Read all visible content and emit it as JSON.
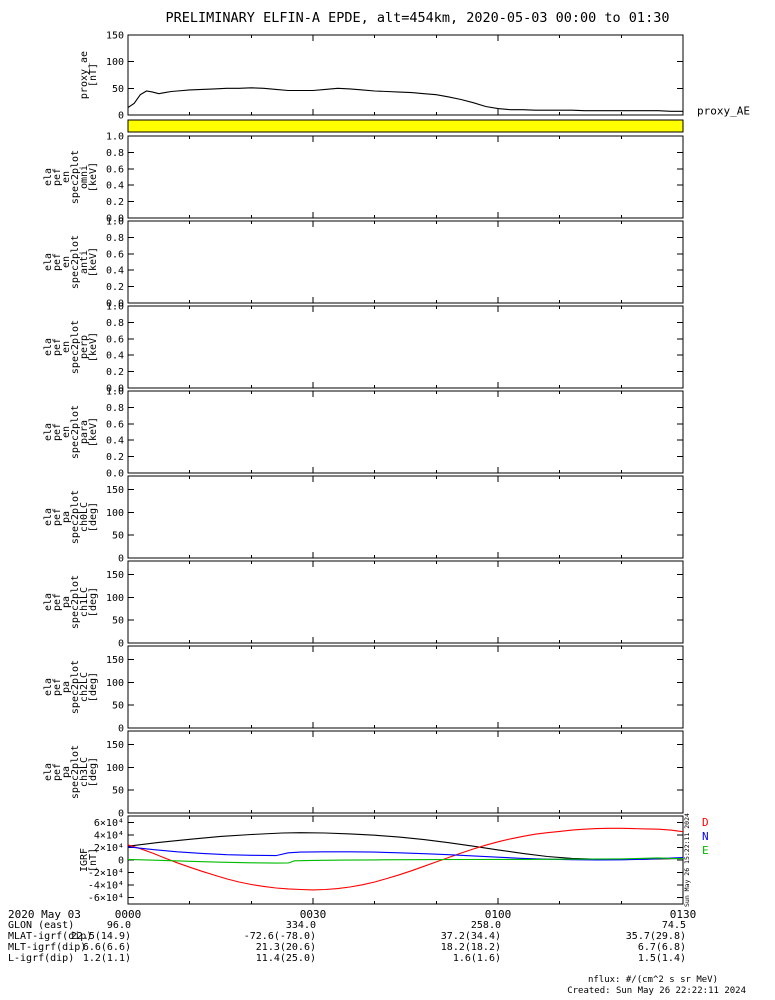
{
  "title": "PRELIMINARY ELFIN-A EPDE, alt=454km, 2020-05-03 00:00 to 01:30",
  "watermark_vertical": "Sun May 26 15:22:11 2024",
  "footer": {
    "nflux_units": "nflux:  #/(cm^2 s sr MeV)",
    "created": "Created: Sun May 26 22:22:11 2024"
  },
  "time_axis": {
    "date_label": "2020 May 03",
    "tick_minutes": [
      0,
      30,
      60,
      90
    ],
    "ticks": [
      "0000",
      "0030",
      "0100",
      "0130"
    ]
  },
  "ephemeris_rows": [
    {
      "label": "GLON (east)",
      "values": [
        "96.0",
        "334.0",
        "258.0",
        "74.5"
      ]
    },
    {
      "label": "MLAT-igrf(dip)",
      "values": [
        "22.5(14.9)",
        "-72.6(-78.0)",
        "37.2(34.4)",
        "35.7(29.8)"
      ]
    },
    {
      "label": "MLT-igrf(dip)",
      "values": [
        "6.6(6.6)",
        "21.3(20.6)",
        "18.2(18.2)",
        "6.7(6.8)"
      ]
    },
    {
      "label": "L-igrf(dip)",
      "values": [
        "1.2(1.1)",
        "11.4(25.0)",
        "1.6(1.6)",
        "1.5(1.4)"
      ]
    }
  ],
  "chart_data": [
    {
      "id": "proxy_ae",
      "type": "line",
      "ylabel_lines": [
        "proxy_ae",
        "[nT]"
      ],
      "ylim": [
        0,
        150
      ],
      "xlim": [
        0,
        90
      ],
      "yticks": [
        {
          "v": 150,
          "label": "150"
        },
        {
          "v": 100,
          "label": "100"
        },
        {
          "v": 50,
          "label": "50"
        },
        {
          "v": 0,
          "label": "0"
        }
      ],
      "right_label": {
        "text": "proxy_AE",
        "color": "#000000"
      },
      "series": [
        {
          "name": "proxy_AE",
          "color": "#000000",
          "points": [
            [
              0,
              14
            ],
            [
              1,
              22
            ],
            [
              2,
              38
            ],
            [
              3,
              45
            ],
            [
              4,
              43
            ],
            [
              5,
              40
            ],
            [
              6,
              42
            ],
            [
              7,
              44
            ],
            [
              8,
              45
            ],
            [
              10,
              47
            ],
            [
              12,
              48
            ],
            [
              14,
              49
            ],
            [
              16,
              50
            ],
            [
              18,
              50
            ],
            [
              20,
              51
            ],
            [
              22,
              50
            ],
            [
              24,
              48
            ],
            [
              26,
              46
            ],
            [
              28,
              46
            ],
            [
              30,
              46
            ],
            [
              32,
              48
            ],
            [
              34,
              50
            ],
            [
              36,
              49
            ],
            [
              38,
              47
            ],
            [
              40,
              45
            ],
            [
              42,
              44
            ],
            [
              44,
              43
            ],
            [
              46,
              42
            ],
            [
              48,
              40
            ],
            [
              50,
              38
            ],
            [
              52,
              34
            ],
            [
              54,
              29
            ],
            [
              56,
              23
            ],
            [
              58,
              16
            ],
            [
              60,
              12
            ],
            [
              62,
              10
            ],
            [
              64,
              10
            ],
            [
              66,
              9
            ],
            [
              68,
              9
            ],
            [
              70,
              9
            ],
            [
              72,
              9
            ],
            [
              74,
              8
            ],
            [
              76,
              8
            ],
            [
              78,
              8
            ],
            [
              80,
              8
            ],
            [
              82,
              8
            ],
            [
              84,
              8
            ],
            [
              86,
              8
            ],
            [
              88,
              7
            ],
            [
              90,
              7
            ]
          ]
        }
      ]
    },
    {
      "id": "fast_bar",
      "type": "band",
      "color": "#ffff00"
    },
    {
      "id": "en_omni",
      "type": "heatmap",
      "ylabel_lines": [
        "ela",
        "pef",
        "en",
        "spec2plot",
        "omni",
        "[keV]"
      ],
      "ylim": [
        0,
        1.0
      ],
      "xlim": [
        0,
        90
      ],
      "yticks": [
        {
          "v": 1.0,
          "label": "1.0"
        },
        {
          "v": 0.8,
          "label": "0.8"
        },
        {
          "v": 0.6,
          "label": "0.6"
        },
        {
          "v": 0.4,
          "label": "0.4"
        },
        {
          "v": 0.2,
          "label": "0.2"
        },
        {
          "v": 0.0,
          "label": "0.0"
        }
      ],
      "series": []
    },
    {
      "id": "en_anti",
      "type": "heatmap",
      "ylabel_lines": [
        "ela",
        "pef",
        "en",
        "spec2plot",
        "anti",
        "[keV]"
      ],
      "ylim": [
        0,
        1.0
      ],
      "xlim": [
        0,
        90
      ],
      "yticks": [
        {
          "v": 1.0,
          "label": "1.0"
        },
        {
          "v": 0.8,
          "label": "0.8"
        },
        {
          "v": 0.6,
          "label": "0.6"
        },
        {
          "v": 0.4,
          "label": "0.4"
        },
        {
          "v": 0.2,
          "label": "0.2"
        },
        {
          "v": 0.0,
          "label": "0.0"
        }
      ],
      "series": []
    },
    {
      "id": "en_perp",
      "type": "heatmap",
      "ylabel_lines": [
        "ela",
        "pef",
        "en",
        "spec2plot",
        "perp",
        "[keV]"
      ],
      "ylim": [
        0,
        1.0
      ],
      "xlim": [
        0,
        90
      ],
      "yticks": [
        {
          "v": 1.0,
          "label": "1.0"
        },
        {
          "v": 0.8,
          "label": "0.8"
        },
        {
          "v": 0.6,
          "label": "0.6"
        },
        {
          "v": 0.4,
          "label": "0.4"
        },
        {
          "v": 0.2,
          "label": "0.2"
        },
        {
          "v": 0.0,
          "label": "0.0"
        }
      ],
      "series": []
    },
    {
      "id": "en_para",
      "type": "heatmap",
      "ylabel_lines": [
        "ela",
        "pef",
        "en",
        "spec2plot",
        "para",
        "[keV]"
      ],
      "ylim": [
        0,
        1.0
      ],
      "xlim": [
        0,
        90
      ],
      "yticks": [
        {
          "v": 1.0,
          "label": "1.0"
        },
        {
          "v": 0.8,
          "label": "0.8"
        },
        {
          "v": 0.6,
          "label": "0.6"
        },
        {
          "v": 0.4,
          "label": "0.4"
        },
        {
          "v": 0.2,
          "label": "0.2"
        },
        {
          "v": 0.0,
          "label": "0.0"
        }
      ],
      "series": []
    },
    {
      "id": "pa_ch0lc",
      "type": "heatmap",
      "ylabel_lines": [
        "ela",
        "pef",
        "pa",
        "spec2plot",
        "ch0LC",
        "[deg]"
      ],
      "ylim": [
        0,
        180
      ],
      "xlim": [
        0,
        90
      ],
      "yticks": [
        {
          "v": 150,
          "label": "150"
        },
        {
          "v": 100,
          "label": "100"
        },
        {
          "v": 50,
          "label": "50"
        },
        {
          "v": 0,
          "label": "0"
        }
      ],
      "series": []
    },
    {
      "id": "pa_ch1lc",
      "type": "heatmap",
      "ylabel_lines": [
        "ela",
        "pef",
        "pa",
        "spec2plot",
        "ch1LC",
        "[deg]"
      ],
      "ylim": [
        0,
        180
      ],
      "xlim": [
        0,
        90
      ],
      "yticks": [
        {
          "v": 150,
          "label": "150"
        },
        {
          "v": 100,
          "label": "100"
        },
        {
          "v": 50,
          "label": "50"
        },
        {
          "v": 0,
          "label": "0"
        }
      ],
      "series": []
    },
    {
      "id": "pa_ch2lc",
      "type": "heatmap",
      "ylabel_lines": [
        "ela",
        "pef",
        "pa",
        "spec2plot",
        "ch2LC",
        "[deg]"
      ],
      "ylim": [
        0,
        180
      ],
      "xlim": [
        0,
        90
      ],
      "yticks": [
        {
          "v": 150,
          "label": "150"
        },
        {
          "v": 100,
          "label": "100"
        },
        {
          "v": 50,
          "label": "50"
        },
        {
          "v": 0,
          "label": "0"
        }
      ],
      "series": []
    },
    {
      "id": "pa_ch3lc",
      "type": "heatmap",
      "ylabel_lines": [
        "ela",
        "pef",
        "pa",
        "spec2plot",
        "ch3LC",
        "[deg]"
      ],
      "ylim": [
        0,
        180
      ],
      "xlim": [
        0,
        90
      ],
      "yticks": [
        {
          "v": 150,
          "label": "150"
        },
        {
          "v": 100,
          "label": "100"
        },
        {
          "v": 50,
          "label": "50"
        },
        {
          "v": 0,
          "label": "0"
        }
      ],
      "series": []
    },
    {
      "id": "igrf",
      "type": "line",
      "ylabel_lines": [
        "IGRF",
        "[nT]"
      ],
      "ylim": [
        -70000,
        70000
      ],
      "xlim": [
        0,
        90
      ],
      "yticks": [
        {
          "v": 60000,
          "label": "6×10⁴"
        },
        {
          "v": 40000,
          "label": "4×10⁴"
        },
        {
          "v": 20000,
          "label": "2×10⁴"
        },
        {
          "v": 0,
          "label": "0"
        },
        {
          "v": -20000,
          "label": "-2×10⁴"
        },
        {
          "v": -40000,
          "label": "-4×10⁴"
        },
        {
          "v": -60000,
          "label": "-6×10⁴"
        }
      ],
      "series": [
        {
          "name": "B_total",
          "color": "#000000",
          "points": [
            [
              0,
              22000
            ],
            [
              5,
              28000
            ],
            [
              10,
              33000
            ],
            [
              15,
              37500
            ],
            [
              20,
              40500
            ],
            [
              25,
              43000
            ],
            [
              28,
              43500
            ],
            [
              32,
              43000
            ],
            [
              36,
              41500
            ],
            [
              40,
              39500
            ],
            [
              44,
              36500
            ],
            [
              48,
              32500
            ],
            [
              52,
              27500
            ],
            [
              56,
              22000
            ],
            [
              60,
              16000
            ],
            [
              64,
              10500
            ],
            [
              68,
              5500
            ],
            [
              72,
              2500
            ],
            [
              76,
              1200
            ],
            [
              80,
              900
            ],
            [
              84,
              1200
            ],
            [
              88,
              2000
            ],
            [
              90,
              2500
            ]
          ]
        },
        {
          "name": "D",
          "legend": "D",
          "color": "#ff0000",
          "points": [
            [
              0,
              24000
            ],
            [
              2,
              18000
            ],
            [
              4,
              11000
            ],
            [
              6,
              3000
            ],
            [
              8,
              -4500
            ],
            [
              10,
              -11500
            ],
            [
              12,
              -18000
            ],
            [
              14,
              -24000
            ],
            [
              16,
              -30000
            ],
            [
              18,
              -35000
            ],
            [
              20,
              -39000
            ],
            [
              22,
              -42000
            ],
            [
              24,
              -44500
            ],
            [
              26,
              -46000
            ],
            [
              28,
              -47000
            ],
            [
              30,
              -47500
            ],
            [
              32,
              -47000
            ],
            [
              34,
              -45500
            ],
            [
              36,
              -43000
            ],
            [
              38,
              -39500
            ],
            [
              40,
              -35000
            ],
            [
              42,
              -29500
            ],
            [
              44,
              -23500
            ],
            [
              46,
              -17000
            ],
            [
              48,
              -10000
            ],
            [
              50,
              -3000
            ],
            [
              52,
              4000
            ],
            [
              54,
              11000
            ],
            [
              56,
              17500
            ],
            [
              58,
              23500
            ],
            [
              60,
              29000
            ],
            [
              62,
              33500
            ],
            [
              64,
              37500
            ],
            [
              66,
              41000
            ],
            [
              68,
              43500
            ],
            [
              70,
              45500
            ],
            [
              72,
              47500
            ],
            [
              74,
              49000
            ],
            [
              76,
              50000
            ],
            [
              78,
              50500
            ],
            [
              80,
              50500
            ],
            [
              82,
              50000
            ],
            [
              84,
              49500
            ],
            [
              86,
              49000
            ],
            [
              88,
              47500
            ],
            [
              90,
              45000
            ]
          ]
        },
        {
          "name": "N",
          "legend": "N",
          "color": "#0000ff",
          "points": [
            [
              0,
              21000
            ],
            [
              4,
              16500
            ],
            [
              8,
              13000
            ],
            [
              12,
              10500
            ],
            [
              16,
              8500
            ],
            [
              20,
              7500
            ],
            [
              24,
              7000
            ],
            [
              26,
              11500
            ],
            [
              28,
              12500
            ],
            [
              32,
              13000
            ],
            [
              36,
              13000
            ],
            [
              40,
              12500
            ],
            [
              44,
              11500
            ],
            [
              48,
              10000
            ],
            [
              52,
              8500
            ],
            [
              56,
              6500
            ],
            [
              60,
              4500
            ],
            [
              64,
              2500
            ],
            [
              68,
              1200
            ],
            [
              72,
              400
            ],
            [
              76,
              100
            ],
            [
              80,
              300
            ],
            [
              84,
              1200
            ],
            [
              88,
              3000
            ],
            [
              90,
              4000
            ]
          ]
        },
        {
          "name": "E",
          "legend": "E",
          "color": "#00bb00",
          "points": [
            [
              0,
              1000
            ],
            [
              5,
              -500
            ],
            [
              10,
              -2000
            ],
            [
              15,
              -3500
            ],
            [
              20,
              -4500
            ],
            [
              24,
              -5000
            ],
            [
              26,
              -4800
            ],
            [
              27,
              -1200
            ],
            [
              30,
              -600
            ],
            [
              35,
              -100
            ],
            [
              40,
              200
            ],
            [
              45,
              400
            ],
            [
              50,
              600
            ],
            [
              55,
              800
            ],
            [
              60,
              900
            ],
            [
              65,
              1000
            ],
            [
              70,
              1200
            ],
            [
              75,
              1500
            ],
            [
              80,
              1800
            ],
            [
              83,
              2600
            ],
            [
              86,
              3400
            ],
            [
              88,
              2600
            ],
            [
              90,
              2200
            ]
          ]
        }
      ]
    }
  ]
}
